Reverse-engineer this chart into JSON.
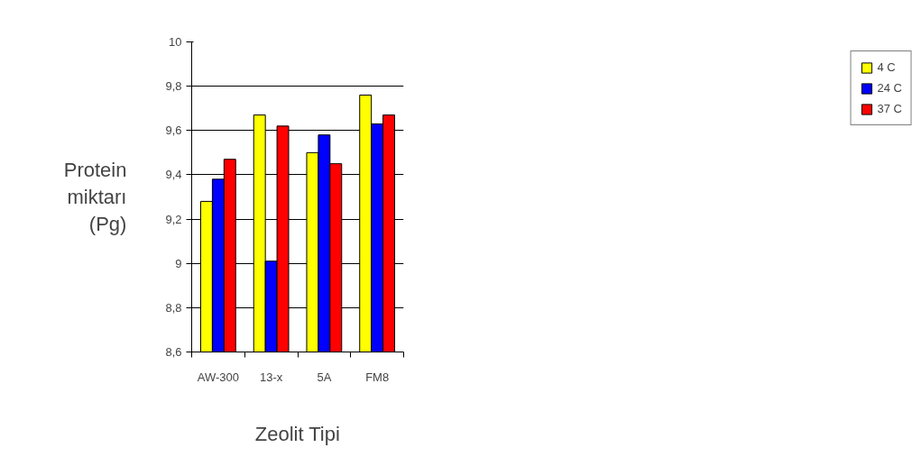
{
  "chart_data": {
    "type": "bar",
    "xlabel": "Zeolit Tipi",
    "ylabel": "Protein miktarı (Pg)",
    "categories": [
      "AW-300",
      "13-x",
      "5A",
      "FM8"
    ],
    "series": [
      {
        "name": "4 C",
        "color": "#ffff00",
        "values": [
          9.28,
          9.67,
          9.5,
          9.76
        ]
      },
      {
        "name": "24 C",
        "color": "#0000ff",
        "values": [
          9.38,
          9.01,
          9.58,
          9.63
        ]
      },
      {
        "name": "37 C",
        "color": "#ff0000",
        "values": [
          9.47,
          9.62,
          9.45,
          9.67
        ]
      }
    ],
    "ylim": [
      8.6,
      10
    ],
    "yticks": [
      {
        "value": 8.6,
        "label": "8,6"
      },
      {
        "value": 8.8,
        "label": "8,8"
      },
      9,
      {
        "value": 9.2,
        "label": "9,2"
      },
      {
        "value": 9.4,
        "label": "9,4"
      },
      {
        "value": 9.6,
        "label": "9,6"
      },
      {
        "value": 9.8,
        "label": "9,8"
      },
      10
    ],
    "grid": "y",
    "legend": "right"
  }
}
